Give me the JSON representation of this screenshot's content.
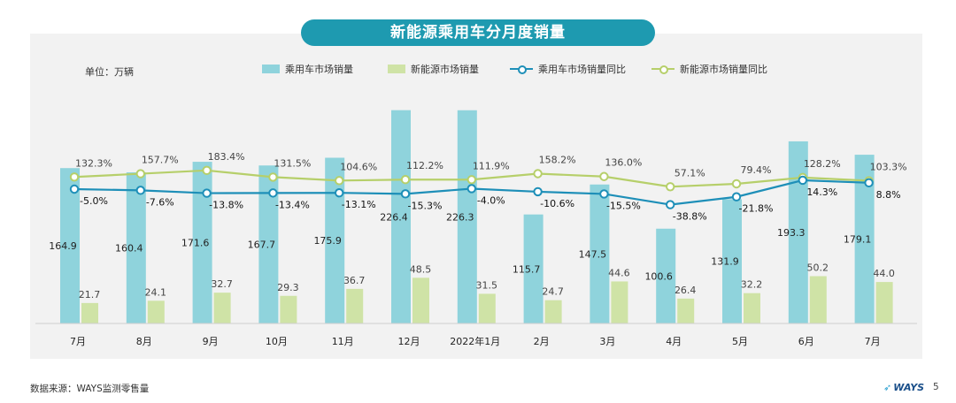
{
  "title": "新能源乘用车分月度销量",
  "unit_label": "单位：万辆",
  "legend": [
    {
      "label": "乘用车市场销量",
      "kind": "bar",
      "color": "#8fd3dc"
    },
    {
      "label": "新能源市场销量",
      "kind": "bar",
      "color": "#cfe3a6"
    },
    {
      "label": "乘用车市场销量同比",
      "kind": "line",
      "color": "#1e8fb8"
    },
    {
      "label": "新能源市场销量同比",
      "kind": "line",
      "color": "#b6cf6a"
    }
  ],
  "source": "数据来源：WAYS监测零售量",
  "logo": "WAYS",
  "page_number": "5",
  "chart_data": {
    "type": "bar",
    "categories": [
      "7月",
      "8月",
      "9月",
      "10月",
      "11月",
      "12月",
      "2022年1月",
      "2月",
      "3月",
      "4月",
      "5月",
      "6月",
      "7月"
    ],
    "series": [
      {
        "name": "乘用车市场销量",
        "type": "bar",
        "color": "#8fd3dc",
        "values": [
          164.9,
          160.4,
          171.6,
          167.7,
          175.9,
          226.4,
          226.3,
          115.7,
          147.5,
          100.6,
          131.9,
          193.3,
          179.1
        ]
      },
      {
        "name": "新能源市场销量",
        "type": "bar",
        "color": "#cfe3a6",
        "values": [
          21.7,
          24.1,
          32.7,
          29.3,
          36.7,
          48.5,
          31.5,
          24.7,
          44.6,
          26.4,
          32.2,
          50.2,
          44.0
        ]
      },
      {
        "name": "乘用车市场销量同比",
        "type": "line",
        "color": "#1e8fb8",
        "values": [
          -5.0,
          -7.6,
          -13.8,
          -13.4,
          -13.1,
          -15.3,
          -4.0,
          -10.6,
          -15.5,
          -38.8,
          -21.8,
          14.3,
          8.8
        ],
        "labels": [
          "-5.0%",
          "-7.6%",
          "-13.8%",
          "-13.4%",
          "-13.1%",
          "-15.3%",
          "-4.0%",
          "-10.6%",
          "-15.5%",
          "-38.8%",
          "-21.8%",
          "14.3%",
          "8.8%"
        ]
      },
      {
        "name": "新能源市场销量同比",
        "type": "line",
        "color": "#b6cf6a",
        "values": [
          132.3,
          157.7,
          183.4,
          131.5,
          104.6,
          112.2,
          111.9,
          158.2,
          136.0,
          57.1,
          79.4,
          128.2,
          103.3
        ],
        "labels": [
          "132.3%",
          "157.7%",
          "183.4%",
          "131.5%",
          "104.6%",
          "112.2%",
          "111.9%",
          "158.2%",
          "136.0%",
          "57.1%",
          "79.4%",
          "128.2%",
          "103.3%"
        ]
      }
    ],
    "bar_labels": {
      "乘用车市场销量": [
        "164.9",
        "160.4",
        "171.6",
        "167.7",
        "175.9",
        "226.4",
        "226.3",
        "115.7",
        "147.5",
        "100.6",
        "131.9",
        "193.3",
        "179.1"
      ],
      "新能源市场销量": [
        "21.7",
        "24.1",
        "32.7",
        "29.3",
        "36.7",
        "48.5",
        "31.5",
        "24.7",
        "44.6",
        "26.4",
        "32.2",
        "50.2",
        "44.0"
      ]
    },
    "grid": false,
    "legend_position": "top"
  }
}
